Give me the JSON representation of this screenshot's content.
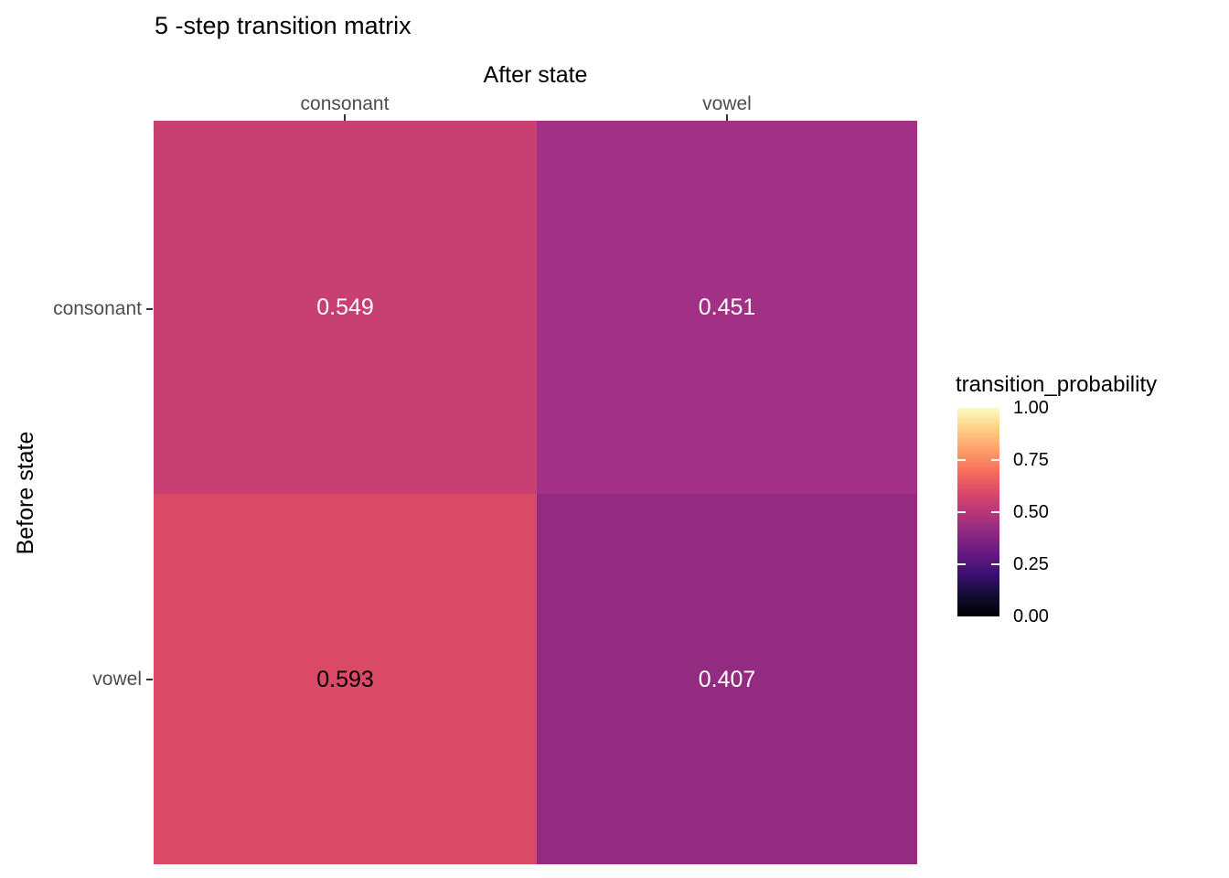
{
  "chart_data": {
    "type": "heatmap",
    "title": "5 -step transition matrix",
    "xlabel": "After state",
    "ylabel": "Before state",
    "x_categories": [
      "consonant",
      "vowel"
    ],
    "y_categories": [
      "consonant",
      "vowel"
    ],
    "values_matrix_rows_before_cols_after": [
      [
        0.549,
        0.451
      ],
      [
        0.593,
        0.407
      ]
    ],
    "cells": [
      {
        "before": "consonant",
        "after": "consonant",
        "value": "0.549",
        "color": "#c83f71",
        "text_color": "#ffffff"
      },
      {
        "before": "consonant",
        "after": "vowel",
        "value": "0.451",
        "color": "#a23186",
        "text_color": "#ffffff"
      },
      {
        "before": "vowel",
        "after": "consonant",
        "value": "0.593",
        "color": "#da4a67",
        "text_color": "#000000"
      },
      {
        "before": "vowel",
        "after": "vowel",
        "value": "0.407",
        "color": "#932c80",
        "text_color": "#ffffff"
      }
    ],
    "legend": {
      "title": "transition_probability",
      "tick_labels": [
        "1.00",
        "0.75",
        "0.50",
        "0.25",
        "0.00"
      ],
      "range": [
        0.0,
        1.0
      ],
      "position": "right",
      "colormap": "magma",
      "gradient_stops_bottom_to_top": [
        "#000004",
        "#120d32",
        "#3b0f70",
        "#641a80",
        "#8c2981",
        "#b73779",
        "#de4968",
        "#f7705c",
        "#fe9f6d",
        "#fcd086",
        "#fcfdbf"
      ]
    },
    "grid": "off",
    "background": "#ffffff",
    "axis_text_color": "#4d4d4d"
  }
}
